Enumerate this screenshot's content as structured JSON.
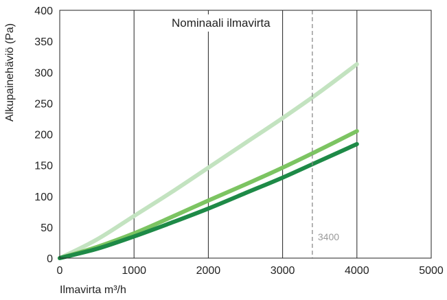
{
  "chart_data": {
    "type": "line",
    "xlabel": "Ilmavirta m³/h",
    "ylabel": "Alkupainehäviö (Pa)",
    "xlim": [
      0,
      5000
    ],
    "ylim": [
      0,
      400
    ],
    "xticks": [
      0,
      1000,
      2000,
      3000,
      4000,
      5000
    ],
    "yticks": [
      0,
      50,
      100,
      150,
      200,
      250,
      300,
      350,
      400
    ],
    "grid": "vertical",
    "annotation": "Nominaali ilmavirta",
    "reference_line": {
      "x": 3400,
      "label": "3400"
    },
    "series": [
      {
        "color": "#c3e3c0",
        "points": [
          [
            0,
            0
          ],
          [
            500,
            30
          ],
          [
            1000,
            68
          ],
          [
            1500,
            106
          ],
          [
            2000,
            146
          ],
          [
            2500,
            186
          ],
          [
            3000,
            226
          ],
          [
            3500,
            268
          ],
          [
            4000,
            313
          ]
        ]
      },
      {
        "color": "#7cc462",
        "points": [
          [
            0,
            0
          ],
          [
            500,
            18
          ],
          [
            1000,
            40
          ],
          [
            1500,
            66
          ],
          [
            2000,
            93
          ],
          [
            2500,
            119
          ],
          [
            3000,
            146
          ],
          [
            3500,
            175
          ],
          [
            4000,
            205
          ]
        ]
      },
      {
        "color": "#1e8a47",
        "points": [
          [
            0,
            0
          ],
          [
            500,
            15
          ],
          [
            1000,
            35
          ],
          [
            1500,
            57
          ],
          [
            2000,
            80
          ],
          [
            2500,
            105
          ],
          [
            3000,
            130
          ],
          [
            3500,
            157
          ],
          [
            4000,
            184
          ]
        ]
      }
    ]
  }
}
